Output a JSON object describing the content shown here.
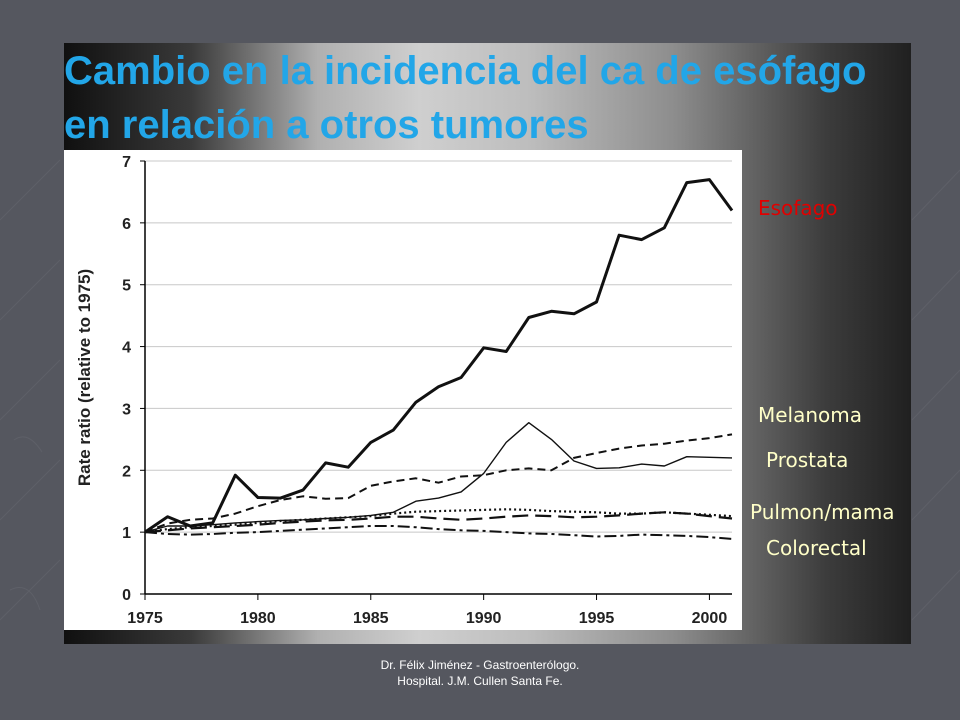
{
  "slide": {
    "title": "Cambio en la incidencia del ca de esófago en relación a otros tumores",
    "footer_line1": "Dr. Félix Jiménez -  Gastroenterólogo.",
    "footer_line2": "Hospital. J.M. Cullen Santa Fe."
  },
  "colors": {
    "title": "#22a6e8",
    "label_esofago": "#e00000",
    "label_others": "#ffffc8",
    "background": "#55575f"
  },
  "series_labels": {
    "esofago": "Esofago",
    "melanoma": "Melanoma",
    "prostata": "Prostata",
    "pulmon_mama": "Pulmon/mama",
    "colorectal": "Colorectal"
  },
  "chart_data": {
    "type": "line",
    "title": "",
    "xlabel": "",
    "ylabel": "Rate ratio (relative to 1975)",
    "xlim": [
      1975,
      2001
    ],
    "ylim": [
      0,
      7
    ],
    "x_ticks": [
      1975,
      1980,
      1985,
      1990,
      1995,
      2000
    ],
    "y_ticks": [
      0,
      1,
      2,
      3,
      4,
      5,
      6,
      7
    ],
    "grid": "horizontal",
    "legend": "none",
    "x": [
      1975,
      1976,
      1977,
      1978,
      1979,
      1980,
      1981,
      1982,
      1983,
      1984,
      1985,
      1986,
      1987,
      1988,
      1989,
      1990,
      1991,
      1992,
      1993,
      1994,
      1995,
      1996,
      1997,
      1998,
      1999,
      2000,
      2001
    ],
    "series": [
      {
        "style": "solid-thick",
        "values": [
          1.0,
          1.25,
          1.1,
          1.15,
          1.92,
          1.56,
          1.55,
          1.68,
          2.12,
          2.05,
          2.45,
          2.65,
          3.1,
          3.35,
          3.5,
          3.98,
          3.92,
          4.47,
          4.57,
          4.53,
          4.72,
          5.8,
          5.73,
          5.92,
          6.65,
          6.7,
          6.2
        ]
      },
      {
        "style": "solid-thin",
        "values": [
          1.0,
          1.1,
          1.1,
          1.12,
          1.15,
          1.17,
          1.19,
          1.2,
          1.22,
          1.24,
          1.27,
          1.32,
          1.5,
          1.55,
          1.65,
          1.95,
          2.45,
          2.77,
          2.5,
          2.15,
          2.03,
          2.04,
          2.1,
          2.07,
          2.22,
          2.21,
          2.2
        ]
      },
      {
        "style": "dashed",
        "values": [
          1.0,
          1.14,
          1.2,
          1.22,
          1.3,
          1.42,
          1.52,
          1.58,
          1.54,
          1.55,
          1.75,
          1.82,
          1.87,
          1.8,
          1.9,
          1.92,
          2.0,
          2.03,
          2.0,
          2.2,
          2.28,
          2.35,
          2.4,
          2.43,
          2.48,
          2.52,
          2.58
        ]
      },
      {
        "style": "dotted",
        "values": [
          1.0,
          1.05,
          1.08,
          1.1,
          1.12,
          1.15,
          1.18,
          1.2,
          1.22,
          1.24,
          1.26,
          1.3,
          1.33,
          1.34,
          1.35,
          1.36,
          1.37,
          1.36,
          1.34,
          1.33,
          1.32,
          1.3,
          1.3,
          1.32,
          1.3,
          1.28,
          1.26
        ]
      },
      {
        "style": "long-dash",
        "values": [
          1.0,
          1.03,
          1.06,
          1.08,
          1.1,
          1.12,
          1.15,
          1.17,
          1.19,
          1.2,
          1.22,
          1.25,
          1.25,
          1.22,
          1.2,
          1.22,
          1.25,
          1.27,
          1.26,
          1.24,
          1.25,
          1.27,
          1.3,
          1.32,
          1.3,
          1.26,
          1.22
        ]
      },
      {
        "style": "dash-dot",
        "values": [
          1.0,
          0.97,
          0.96,
          0.97,
          0.99,
          1.0,
          1.02,
          1.04,
          1.06,
          1.08,
          1.1,
          1.1,
          1.08,
          1.05,
          1.03,
          1.02,
          1.0,
          0.98,
          0.97,
          0.95,
          0.93,
          0.94,
          0.96,
          0.95,
          0.94,
          0.92,
          0.89
        ]
      }
    ]
  }
}
